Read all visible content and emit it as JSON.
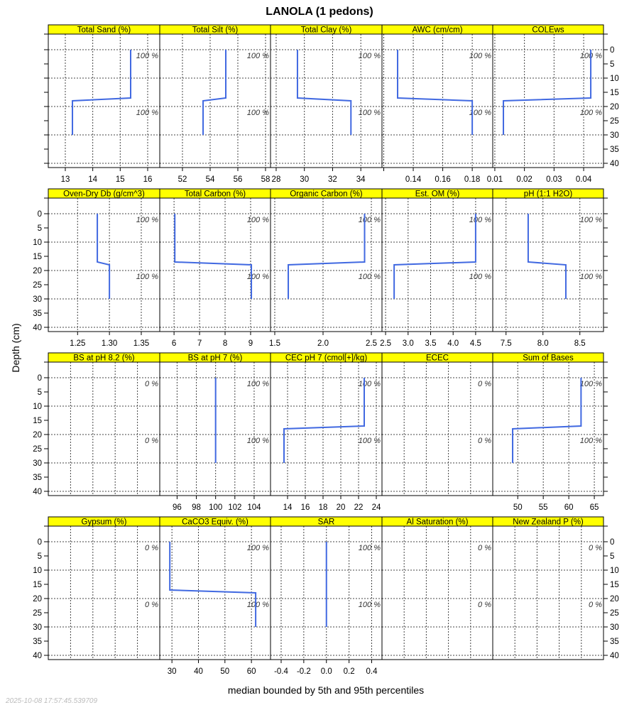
{
  "chart_data": {
    "type": "line",
    "title": "LANOLA (1 pedons)",
    "xlabel": "median bounded by 5th and 95th percentiles",
    "ylabel": "Depth (cm)",
    "ylim": [
      41.5,
      -5.5
    ],
    "yticks": [
      0,
      5,
      10,
      15,
      20,
      25,
      30,
      35,
      40
    ],
    "grid": true,
    "timestamp": "2025-10-08 17:57:45.539709",
    "line_color": "#4169E1",
    "strip_color": "#FFFF00",
    "panels": [
      {
        "title": "Total Sand (%)",
        "xlim": [
          12.38,
          16.44
        ],
        "xticks": [
          13,
          14,
          15,
          16
        ],
        "xtick_labels": [
          "13",
          "14",
          "15",
          "16"
        ],
        "annotations": [
          "100 %",
          "100 %"
        ],
        "horizons": [
          {
            "top": 0,
            "bottom": 17,
            "value": 15.38
          },
          {
            "top": 18,
            "bottom": 30,
            "value": 13.26
          }
        ]
      },
      {
        "title": "Total Silt (%)",
        "xlim": [
          50.36,
          58.36
        ],
        "xticks": [
          52,
          54,
          56,
          58
        ],
        "xtick_labels": [
          "52",
          "54",
          "56",
          "58"
        ],
        "annotations": [
          "100 %",
          "100 %"
        ],
        "horizons": [
          {
            "top": 0,
            "bottom": 17,
            "value": 55.13
          },
          {
            "top": 18,
            "bottom": 30,
            "value": 53.49
          }
        ]
      },
      {
        "title": "Total Clay (%)",
        "xlim": [
          27.6,
          35.5
        ],
        "xticks": [
          28,
          30,
          32,
          34
        ],
        "xtick_labels": [
          "28",
          "30",
          "32",
          "34"
        ],
        "annotations": [
          "100 %",
          "100 %"
        ],
        "horizons": [
          {
            "top": 0,
            "bottom": 17,
            "value": 29.51
          },
          {
            "top": 18,
            "bottom": 30,
            "value": 33.3
          }
        ]
      },
      {
        "title": "AWC (cm/cm)",
        "xlim": [
          0.1188,
          0.1939
        ],
        "xticks": [
          0.12,
          0.14,
          0.16,
          0.18
        ],
        "xtick_labels": [
          "",
          "0.14",
          "0.16",
          "0.18"
        ],
        "annotations": [
          "100 %",
          "100 %"
        ],
        "horizons": [
          {
            "top": 0,
            "bottom": 17,
            "value": 0.1294
          },
          {
            "top": 18,
            "bottom": 30,
            "value": 0.18
          }
        ]
      },
      {
        "title": "COLEws",
        "xlim": [
          0.0093,
          0.0467
        ],
        "xticks": [
          0.01,
          0.02,
          0.03,
          0.04
        ],
        "xtick_labels": [
          "0.01",
          "0.02",
          "0.03",
          "0.04"
        ],
        "annotations": [
          "100 %",
          "100 %"
        ],
        "horizons": [
          {
            "top": 0,
            "bottom": 17,
            "value": 0.0424
          },
          {
            "top": 18,
            "bottom": 30,
            "value": 0.0129
          }
        ]
      },
      {
        "title": "Oven-Dry Db (g/cm^3)",
        "xlim": [
          1.204,
          1.379
        ],
        "xticks": [
          1.25,
          1.3,
          1.35
        ],
        "xtick_labels": [
          "1.25",
          "1.30",
          "1.35"
        ],
        "annotations": [
          "100 %",
          "100 %"
        ],
        "horizons": [
          {
            "top": 0,
            "bottom": 17,
            "value": 1.281
          },
          {
            "top": 18,
            "bottom": 30,
            "value": 1.3
          }
        ]
      },
      {
        "title": "Total Carbon (%)",
        "xlim": [
          5.44,
          9.78
        ],
        "xticks": [
          6,
          7,
          8,
          9
        ],
        "xtick_labels": [
          "6",
          "7",
          "8",
          "9"
        ],
        "annotations": [
          "100 %",
          "100 %"
        ],
        "horizons": [
          {
            "top": 0,
            "bottom": 17,
            "value": 6.03
          },
          {
            "top": 18,
            "bottom": 30,
            "value": 9.03
          }
        ]
      },
      {
        "title": "Organic Carbon (%)",
        "xlim": [
          1.456,
          2.61
        ],
        "xticks": [
          1.5,
          2.0,
          2.5
        ],
        "xtick_labels": [
          "1.5",
          "2.0",
          "2.5"
        ],
        "annotations": [
          "100 %",
          "100 %"
        ],
        "horizons": [
          {
            "top": 0,
            "bottom": 17,
            "value": 2.43
          },
          {
            "top": 18,
            "bottom": 30,
            "value": 1.64
          }
        ]
      },
      {
        "title": "Est. OM (%)",
        "xlim": [
          2.42,
          4.88
        ],
        "xticks": [
          2.5,
          3.0,
          3.5,
          4.0,
          4.5
        ],
        "xtick_labels": [
          "2.5",
          "3.0",
          "3.5",
          "4.0",
          "4.5"
        ],
        "annotations": [
          "100 %",
          "100 %"
        ],
        "horizons": [
          {
            "top": 0,
            "bottom": 17,
            "value": 4.5
          },
          {
            "top": 18,
            "bottom": 30,
            "value": 2.69
          }
        ]
      },
      {
        "title": "pH (1:1 H2O)",
        "xlim": [
          7.32,
          8.82
        ],
        "xticks": [
          7.5,
          8.0,
          8.5
        ],
        "xtick_labels": [
          "7.5",
          "8.0",
          "8.5"
        ],
        "annotations": [
          "100 %",
          "100 %"
        ],
        "horizons": [
          {
            "top": 0,
            "bottom": 17,
            "value": 7.8
          },
          {
            "top": 18,
            "bottom": 30,
            "value": 8.31
          }
        ]
      },
      {
        "title": "BS at pH 8.2 (%)",
        "xlim": [
          0,
          1
        ],
        "xticks": [
          0.2,
          0.4,
          0.6,
          0.8
        ],
        "xtick_labels": [],
        "annotations": [
          "0 %",
          "0 %"
        ],
        "horizons": []
      },
      {
        "title": "BS at pH 7 (%)",
        "xlim": [
          94.2,
          105.7
        ],
        "xticks": [
          96,
          98,
          100,
          102,
          104
        ],
        "xtick_labels": [
          "96",
          "98",
          "100",
          "102",
          "104"
        ],
        "annotations": [
          "100 %",
          "100 %"
        ],
        "horizons": [
          {
            "top": 0,
            "bottom": 17,
            "value": 100
          },
          {
            "top": 18,
            "bottom": 30,
            "value": 100
          }
        ]
      },
      {
        "title": "CEC pH 7 (cmol[+]/kg)",
        "xlim": [
          12.08,
          24.64
        ],
        "xticks": [
          14,
          16,
          18,
          20,
          22,
          24
        ],
        "xtick_labels": [
          "14",
          "16",
          "18",
          "20",
          "22",
          "24"
        ],
        "annotations": [
          "100 %",
          "100 %"
        ],
        "horizons": [
          {
            "top": 0,
            "bottom": 17,
            "value": 22.64
          },
          {
            "top": 18,
            "bottom": 30,
            "value": 13.6
          }
        ]
      },
      {
        "title": "ECEC",
        "xlim": [
          0,
          1
        ],
        "xticks": [
          0.2,
          0.4,
          0.6,
          0.8
        ],
        "xtick_labels": [],
        "annotations": [
          "0 %",
          "0 %"
        ],
        "horizons": []
      },
      {
        "title": "Sum of Bases",
        "xlim": [
          45.1,
          66.8
        ],
        "xticks": [
          50,
          55,
          60,
          65
        ],
        "xtick_labels": [
          "50",
          "55",
          "60",
          "65"
        ],
        "annotations": [
          "100 %",
          "100 %"
        ],
        "horizons": [
          {
            "top": 0,
            "bottom": 17,
            "value": 62.4
          },
          {
            "top": 18,
            "bottom": 30,
            "value": 49.0
          }
        ]
      },
      {
        "title": "Gypsum (%)",
        "xlim": [
          0,
          1
        ],
        "xticks": [
          0.2,
          0.4,
          0.6,
          0.8
        ],
        "xtick_labels": [],
        "annotations": [
          "0 %",
          "0 %"
        ],
        "horizons": []
      },
      {
        "title": "CaCO3 Equiv. (%)",
        "xlim": [
          25.4,
          67.2
        ],
        "xticks": [
          30,
          40,
          50,
          60
        ],
        "xtick_labels": [
          "30",
          "40",
          "50",
          "60"
        ],
        "annotations": [
          "100 %",
          "100 %"
        ],
        "horizons": [
          {
            "top": 0,
            "bottom": 17,
            "value": 29.2
          },
          {
            "top": 18,
            "bottom": 30,
            "value": 61.6
          }
        ]
      },
      {
        "title": "SAR",
        "xlim": [
          -0.494,
          0.491
        ],
        "xticks": [
          -0.4,
          -0.2,
          0,
          0.2,
          0.4
        ],
        "xtick_labels": [
          "-0.4",
          "-0.2",
          "0.0",
          "0.2",
          "0.4"
        ],
        "annotations": [
          "100 %",
          "100 %"
        ],
        "horizons": [
          {
            "top": 0,
            "bottom": 17,
            "value": 0
          },
          {
            "top": 18,
            "bottom": 30,
            "value": 0
          }
        ]
      },
      {
        "title": "Al Saturation (%)",
        "xlim": [
          0,
          1
        ],
        "xticks": [
          0.2,
          0.4,
          0.6,
          0.8
        ],
        "xtick_labels": [],
        "annotations": [
          "0 %",
          "0 %"
        ],
        "horizons": []
      },
      {
        "title": "New Zealand P (%)",
        "xlim": [
          0,
          1
        ],
        "xticks": [
          0.2,
          0.4,
          0.6,
          0.8
        ],
        "xtick_labels": [],
        "annotations": [
          "0 %",
          "0 %"
        ],
        "horizons": []
      }
    ]
  }
}
